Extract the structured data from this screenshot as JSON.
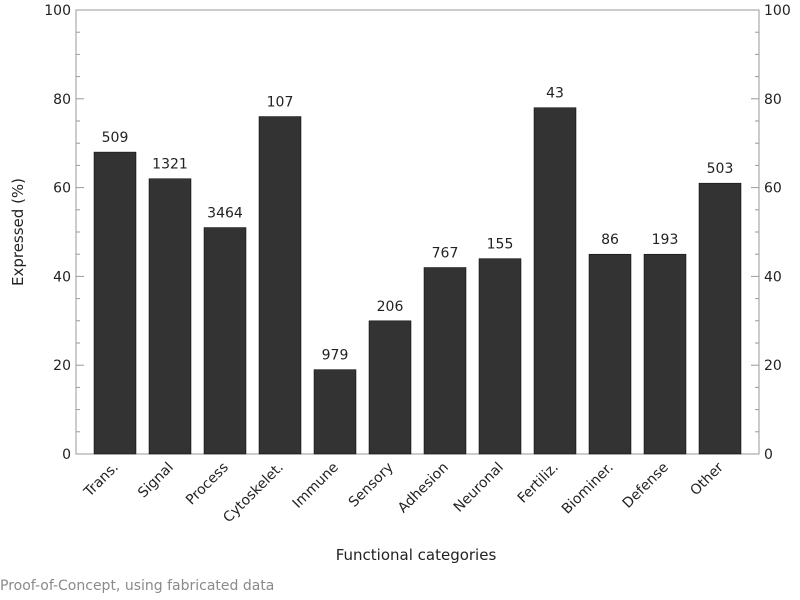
{
  "chart_data": {
    "type": "bar",
    "xlabel": "Functional categories",
    "ylabel": "Expressed (%)",
    "ylim": [
      0,
      100
    ],
    "yticks": [
      0,
      20,
      40,
      60,
      80,
      100
    ],
    "categories": [
      "Trans.",
      "Signal",
      "Process",
      "Cytoskelet.",
      "Immune",
      "Sensory",
      "Adhesion",
      "Neuronal",
      "Fertiliz.",
      "Biominer.",
      "Defense",
      "Other"
    ],
    "values": [
      68,
      62,
      51,
      76,
      19,
      30,
      42,
      44,
      78,
      45,
      45,
      61
    ],
    "bar_labels": [
      "509",
      "1321",
      "3464",
      "107",
      "979",
      "206",
      "767",
      "155",
      "43",
      "86",
      "193",
      "503"
    ],
    "grid": false,
    "bar_color": "#333333",
    "right_axis_mirrored": true
  },
  "footer": {
    "note": "Proof-of-Concept, using fabricated data"
  }
}
